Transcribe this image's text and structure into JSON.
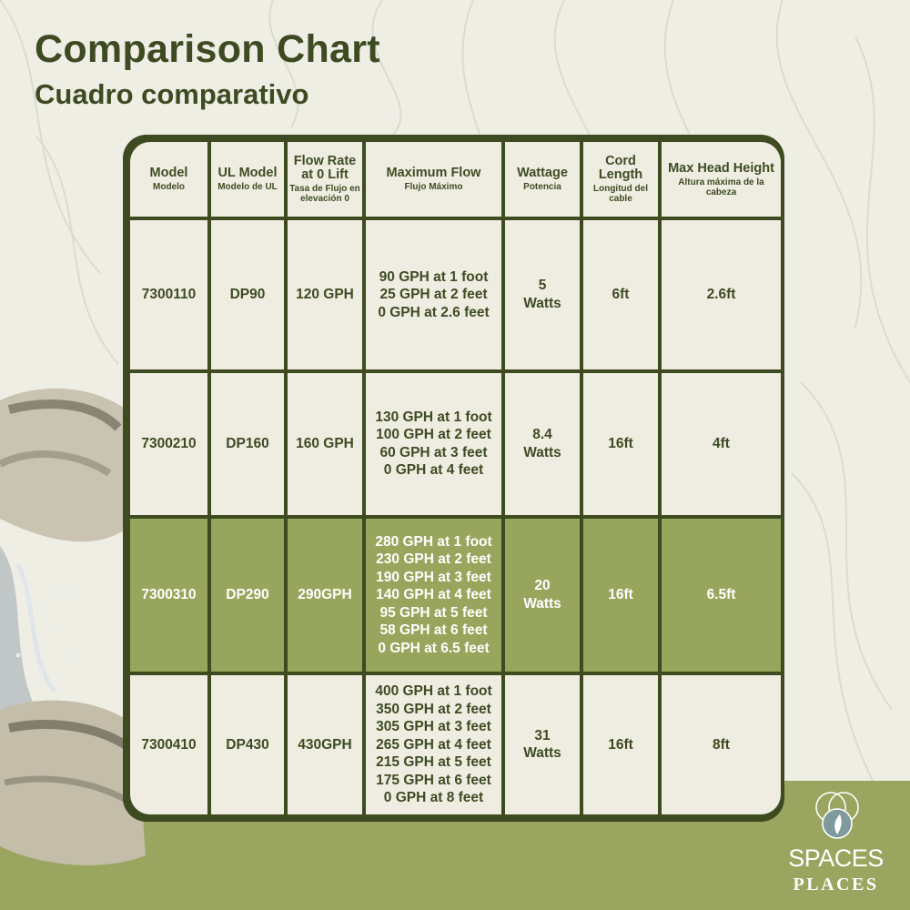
{
  "title": "Comparison Chart",
  "subtitle": "Cuadro comparativo",
  "colors": {
    "background": "#efeee5",
    "dark_green": "#3e4a20",
    "highlight_green": "#98a55c",
    "cell": "#efede2",
    "band": "#9aa55f"
  },
  "table": {
    "headers": [
      {
        "en": "Model",
        "es": "Modelo"
      },
      {
        "en": "UL Model",
        "es": "Modelo de UL"
      },
      {
        "en": "Flow Rate at 0 Lift",
        "es": "Tasa de Flujo en elevación 0"
      },
      {
        "en": "Maximum Flow",
        "es": "Flujo Máximo"
      },
      {
        "en": "Wattage",
        "es": "Potencia"
      },
      {
        "en": "Cord Length",
        "es": "Longitud del cable"
      },
      {
        "en": "Max Head Height",
        "es": "Altura máxima de la cabeza"
      }
    ],
    "rows": [
      {
        "model": "7300110",
        "ul_model": "DP90",
        "flow_rate": "120 GPH",
        "max_flow": [
          "90 GPH at 1 foot",
          "25 GPH at 2 feet",
          "0 GPH at 2.6 feet"
        ],
        "wattage": [
          "5",
          "Watts"
        ],
        "cord_length": "6ft",
        "max_head": "2.6ft",
        "highlighted": false
      },
      {
        "model": "7300210",
        "ul_model": "DP160",
        "flow_rate": "160 GPH",
        "max_flow": [
          "130 GPH at 1 foot",
          "100 GPH at 2 feet",
          "60 GPH at 3 feet",
          "0 GPH at 4 feet"
        ],
        "wattage": [
          "8.4",
          "Watts"
        ],
        "cord_length": "16ft",
        "max_head": "4ft",
        "highlighted": false
      },
      {
        "model": "7300310",
        "ul_model": "DP290",
        "flow_rate": "290GPH",
        "max_flow": [
          "280 GPH at 1 foot",
          "230 GPH at 2 feet",
          "190 GPH at 3 feet",
          "140 GPH at 4 feet",
          "95 GPH at 5 feet",
          "58 GPH at 6 feet",
          "0 GPH at 6.5 feet"
        ],
        "wattage": [
          "20",
          "Watts"
        ],
        "cord_length": "16ft",
        "max_head": "6.5ft",
        "highlighted": true
      },
      {
        "model": "7300410",
        "ul_model": "DP430",
        "flow_rate": "430GPH",
        "max_flow": [
          "400 GPH at 1 foot",
          "350 GPH at 2 feet",
          "305 GPH at 3 feet",
          "265 GPH at 4 feet",
          "215 GPH at 5 feet",
          "175 GPH at 6 feet",
          "0 GPH at 8 feet"
        ],
        "wattage": [
          "31",
          "Watts"
        ],
        "cord_length": "16ft",
        "max_head": "8ft",
        "highlighted": false
      }
    ]
  },
  "logo": {
    "line1": "SPACES",
    "line2": "PLACES",
    "icon": "leaf-circles-icon"
  },
  "decoration": {
    "icon": "fountain-water-image"
  }
}
